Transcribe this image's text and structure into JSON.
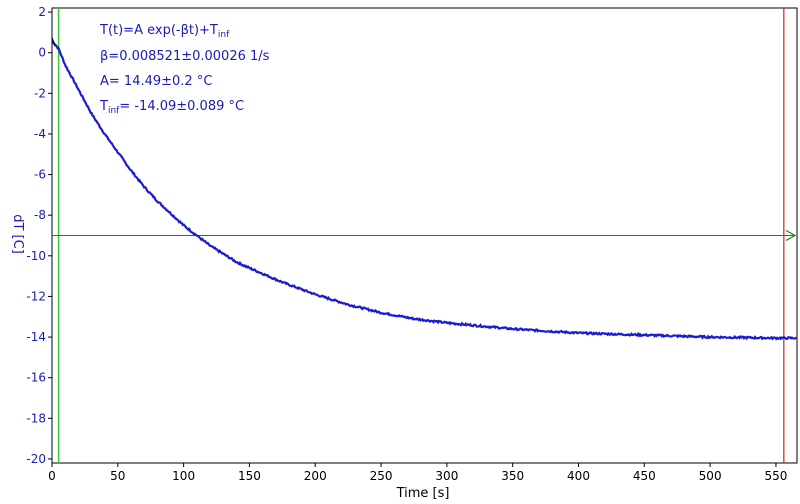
{
  "chart_data": {
    "type": "line",
    "xlabel": "Time [s]",
    "ylabel": "dT [C]",
    "xlim": [
      0,
      566
    ],
    "ylim": [
      -20.2,
      2.2
    ],
    "x_ticks": [
      0,
      50,
      100,
      150,
      200,
      250,
      300,
      350,
      400,
      450,
      500,
      550
    ],
    "y_ticks": [
      2,
      0,
      -2,
      -4,
      -6,
      -8,
      -10,
      -12,
      -14,
      -16,
      -18,
      -20
    ],
    "grid": false,
    "series": [
      {
        "color": "#1b1bd0",
        "x": [
          0,
          5,
          10,
          20,
          30,
          40,
          50,
          60,
          70,
          80,
          90,
          100,
          110,
          120,
          130,
          140,
          150,
          175,
          200,
          225,
          250,
          275,
          300,
          350,
          400,
          450,
          500,
          550,
          566
        ],
        "y": [
          0.6,
          0.2,
          -0.6,
          -1.8,
          -3.0,
          -4.0,
          -4.9,
          -5.8,
          -6.6,
          -7.3,
          -7.9,
          -8.5,
          -9.0,
          -9.5,
          -9.9,
          -10.3,
          -10.6,
          -11.3,
          -11.9,
          -12.4,
          -12.8,
          -13.1,
          -13.3,
          -13.6,
          -13.8,
          -13.9,
          -14.0,
          -14.05,
          -14.05
        ]
      }
    ],
    "markers": {
      "vertical_green_x": 5,
      "vertical_red_x": 556,
      "horizontal_green_y": -9.0
    },
    "annotations": {
      "model_main": "T(t)=A exp(-βt)+T",
      "model_sub": "inf",
      "beta": "β=0.008521±0.00026 1/s",
      "amp": "A= 14.49±0.2 °C",
      "tinf_main": "T",
      "tinf_sub": "inf",
      "tinf_rest": "= -14.09±0.089 °C"
    },
    "colors": {
      "frame": "#000000",
      "series": "#1b1bd0",
      "left_marker": "#33cc33",
      "right_marker": "#cc2222",
      "h_marker": "#118811",
      "y_text": "#1b1bb5"
    }
  }
}
